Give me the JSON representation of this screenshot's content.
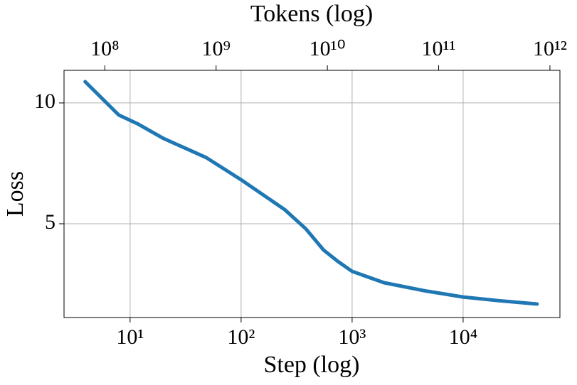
{
  "chart_data": {
    "type": "line",
    "xlabel": "Step (log)",
    "ylabel": "Loss",
    "x2label": "Tokens (log)",
    "xscale": "log",
    "x2scale": "log",
    "grid": true,
    "color": "#1f77b4",
    "xlim": [
      2.54,
      74500
    ],
    "ylim": [
      1.12,
      11.35
    ],
    "x2lim": [
      43000000,
      1230000000000
    ],
    "xticks": [
      {
        "value": 10,
        "label": "10¹"
      },
      {
        "value": 100,
        "label": "10²"
      },
      {
        "value": 1000,
        "label": "10³"
      },
      {
        "value": 10000,
        "label": "10⁴"
      }
    ],
    "yticks": [
      5,
      10
    ],
    "x2ticks": [
      {
        "value": 100000000,
        "label": "10⁸"
      },
      {
        "value": 1000000000,
        "label": "10⁹"
      },
      {
        "value": 10000000000,
        "label": "10¹⁰"
      },
      {
        "value": 100000000000,
        "label": "10¹¹"
      },
      {
        "value": 1000000000000,
        "label": "10¹²"
      }
    ],
    "x": [
      3.94,
      7.9,
      11.9,
      20,
      48.5,
      100,
      246,
      383,
      554,
      745,
      1000,
      1941,
      4710,
      10000,
      20600,
      46400
    ],
    "values": [
      10.88,
      9.5,
      9.12,
      8.53,
      7.74,
      6.82,
      5.59,
      4.79,
      3.91,
      3.44,
      3.03,
      2.56,
      2.21,
      1.97,
      1.82,
      1.68
    ]
  }
}
